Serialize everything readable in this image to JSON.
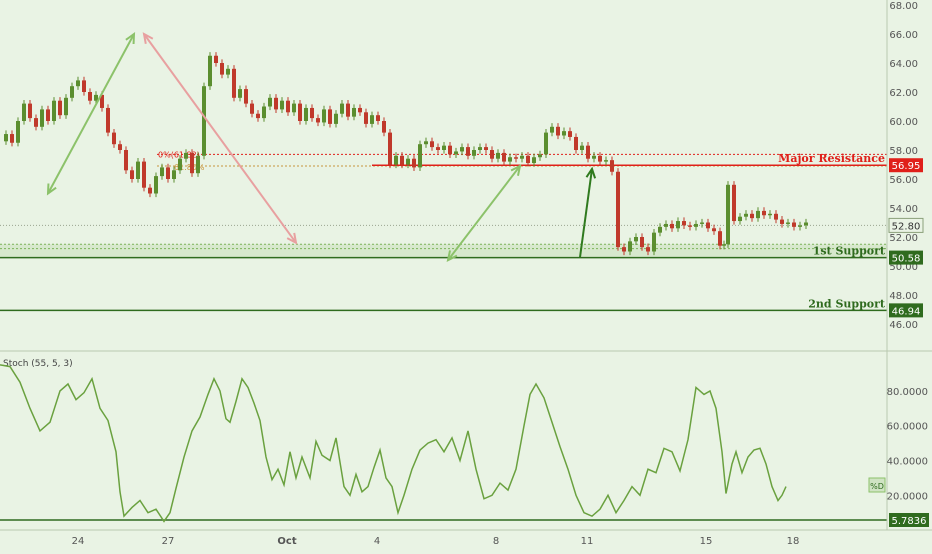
{
  "colors": {
    "background": "#e9f3e4",
    "up_candle": "#5b8e2f",
    "down_candle": "#c0392b",
    "resistance": "#e0201a",
    "support": "#2f6b1e",
    "stoch_line": "#6aa13f",
    "fib_line": "#c8963e",
    "arrow_red": "#e8a0a0",
    "arrow_green": "#8cc26a",
    "up_arrow": "#2f7a1e",
    "axis_text": "#555555"
  },
  "chart_data": [
    {
      "type": "candlestick",
      "ylim": [
        45.6,
        68.2
      ],
      "y_ticks": [
        "46.00",
        "48.00",
        "50.00",
        "52.00",
        "54.00",
        "56.00",
        "58.00",
        "60.00",
        "62.00",
        "64.00",
        "66.00",
        "68.00"
      ],
      "x_ticks": [
        "24",
        "27",
        "Oct",
        "4",
        "8",
        "11",
        "15",
        "18"
      ],
      "price_path": [
        [
          0,
          58.6
        ],
        [
          3,
          59.1
        ],
        [
          6,
          58.5
        ],
        [
          9,
          60.0
        ],
        [
          12,
          61.2
        ],
        [
          15,
          60.2
        ],
        [
          18,
          59.6
        ],
        [
          21,
          60.8
        ],
        [
          24,
          60.0
        ],
        [
          27,
          61.4
        ],
        [
          30,
          60.4
        ],
        [
          33,
          61.6
        ],
        [
          36,
          62.4
        ],
        [
          39,
          62.8
        ],
        [
          42,
          62.0
        ],
        [
          45,
          61.4
        ],
        [
          48,
          61.8
        ],
        [
          51,
          60.9
        ],
        [
          54,
          59.2
        ],
        [
          57,
          58.4
        ],
        [
          60,
          58.0
        ],
        [
          63,
          56.6
        ],
        [
          66,
          56.0
        ],
        [
          69,
          57.2
        ],
        [
          72,
          55.4
        ],
        [
          75,
          55.0
        ],
        [
          78,
          56.2
        ],
        [
          81,
          56.8
        ],
        [
          84,
          56.0
        ],
        [
          87,
          56.6
        ],
        [
          90,
          57.4
        ],
        [
          93,
          57.8
        ],
        [
          96,
          56.4
        ],
        [
          99,
          57.6
        ],
        [
          102,
          62.4
        ],
        [
          105,
          64.5
        ],
        [
          108,
          64.0
        ],
        [
          111,
          63.2
        ],
        [
          114,
          63.6
        ],
        [
          117,
          61.6
        ],
        [
          120,
          62.2
        ],
        [
          123,
          61.2
        ],
        [
          126,
          60.5
        ],
        [
          129,
          60.2
        ],
        [
          132,
          61.0
        ],
        [
          135,
          61.6
        ],
        [
          138,
          60.8
        ],
        [
          141,
          61.4
        ],
        [
          144,
          60.6
        ],
        [
          147,
          61.2
        ],
        [
          150,
          60.0
        ],
        [
          153,
          60.9
        ],
        [
          156,
          60.2
        ],
        [
          159,
          59.9
        ],
        [
          162,
          60.8
        ],
        [
          165,
          59.8
        ],
        [
          168,
          60.5
        ],
        [
          171,
          61.2
        ],
        [
          174,
          60.3
        ],
        [
          177,
          60.9
        ],
        [
          180,
          60.6
        ],
        [
          183,
          59.8
        ],
        [
          186,
          60.4
        ],
        [
          189,
          60.0
        ],
        [
          192,
          59.2
        ],
        [
          195,
          57.0
        ],
        [
          198,
          57.6
        ],
        [
          201,
          57.0
        ],
        [
          204,
          57.4
        ],
        [
          207,
          56.8
        ],
        [
          210,
          58.4
        ],
        [
          213,
          58.6
        ],
        [
          216,
          58.2
        ],
        [
          219,
          58.0
        ],
        [
          222,
          58.3
        ],
        [
          225,
          57.7
        ],
        [
          228,
          57.9
        ],
        [
          231,
          58.2
        ],
        [
          234,
          57.6
        ],
        [
          237,
          58.0
        ],
        [
          240,
          58.2
        ],
        [
          243,
          58.0
        ],
        [
          246,
          57.4
        ],
        [
          249,
          57.8
        ],
        [
          252,
          57.2
        ],
        [
          255,
          57.5
        ],
        [
          258,
          57.4
        ],
        [
          261,
          57.6
        ],
        [
          264,
          57.1
        ],
        [
          267,
          57.5
        ],
        [
          270,
          57.7
        ],
        [
          273,
          59.2
        ],
        [
          276,
          59.6
        ],
        [
          279,
          59.0
        ],
        [
          282,
          59.3
        ],
        [
          285,
          58.9
        ],
        [
          288,
          58.0
        ],
        [
          291,
          58.3
        ],
        [
          294,
          57.4
        ],
        [
          297,
          57.6
        ],
        [
          300,
          57.2
        ],
        [
          303,
          57.3
        ],
        [
          306,
          56.5
        ],
        [
          309,
          51.3
        ],
        [
          312,
          51.0
        ],
        [
          315,
          51.7
        ],
        [
          318,
          52.0
        ],
        [
          321,
          51.3
        ],
        [
          324,
          51.0
        ],
        [
          327,
          52.3
        ],
        [
          330,
          52.7
        ],
        [
          333,
          52.9
        ],
        [
          336,
          52.6
        ],
        [
          339,
          53.1
        ],
        [
          342,
          52.8
        ],
        [
          345,
          52.7
        ],
        [
          348,
          52.9
        ],
        [
          351,
          53.0
        ],
        [
          354,
          52.6
        ],
        [
          357,
          52.4
        ],
        [
          360,
          51.4
        ],
        [
          362,
          51.5
        ],
        [
          364,
          55.6
        ],
        [
          367,
          53.1
        ],
        [
          370,
          53.4
        ],
        [
          373,
          53.6
        ],
        [
          376,
          53.3
        ],
        [
          379,
          53.8
        ],
        [
          382,
          53.5
        ],
        [
          385,
          53.6
        ],
        [
          388,
          53.2
        ],
        [
          391,
          52.9
        ],
        [
          394,
          53.0
        ],
        [
          397,
          52.7
        ],
        [
          400,
          52.8
        ],
        [
          403,
          53.0
        ]
      ],
      "levels": [
        {
          "label": "Major Resistance",
          "value": 56.95
        },
        {
          "label": "1st Support",
          "value": 50.58
        },
        {
          "label": "2nd Support",
          "value": 46.94
        }
      ],
      "current_price": 52.8,
      "fib_labels": [
        "0%(61.82)",
        "61.80%"
      ],
      "annotations": [
        {
          "type": "arrow",
          "color": "arrow_green",
          "from": [
            24,
            55.0
          ],
          "to": [
            67,
            66.0
          ]
        },
        {
          "type": "arrow",
          "color": "arrow_red",
          "from": [
            72,
            66.0
          ],
          "to": [
            148,
            51.6
          ]
        },
        {
          "type": "arrow",
          "color": "arrow_green",
          "from": [
            224,
            50.4
          ],
          "to": [
            260,
            56.9
          ]
        },
        {
          "type": "arrow",
          "color": "up_arrow",
          "from": [
            290,
            50.6
          ],
          "to": [
            296,
            56.7
          ]
        }
      ]
    },
    {
      "type": "line",
      "name": "Stoch (55, 5, 3)",
      "ylim": [
        0,
        100
      ],
      "y_ticks": [
        "20.0000",
        "40.0000",
        "60.0000",
        "80.0000"
      ],
      "series": [
        {
          "name": "%D",
          "points": [
            [
              0,
              95
            ],
            [
              5,
              94
            ],
            [
              10,
              85
            ],
            [
              15,
              70
            ],
            [
              20,
              57
            ],
            [
              25,
              62
            ],
            [
              30,
              80
            ],
            [
              34,
              84
            ],
            [
              38,
              75
            ],
            [
              42,
              79
            ],
            [
              46,
              87
            ],
            [
              50,
              70
            ],
            [
              54,
              63
            ],
            [
              58,
              45
            ],
            [
              60,
              22
            ],
            [
              62,
              8
            ],
            [
              66,
              13
            ],
            [
              70,
              17
            ],
            [
              74,
              10
            ],
            [
              78,
              12
            ],
            [
              82,
              5
            ],
            [
              85,
              10
            ],
            [
              88,
              24
            ],
            [
              92,
              42
            ],
            [
              96,
              57
            ],
            [
              100,
              65
            ],
            [
              104,
              78
            ],
            [
              107,
              87
            ],
            [
              110,
              80
            ],
            [
              113,
              64
            ],
            [
              115,
              62
            ],
            [
              118,
              74
            ],
            [
              121,
              87
            ],
            [
              124,
              82
            ],
            [
              127,
              73
            ],
            [
              130,
              63
            ],
            [
              133,
              42
            ],
            [
              136,
              29
            ],
            [
              139,
              35
            ],
            [
              142,
              26
            ],
            [
              145,
              45
            ],
            [
              148,
              30
            ],
            [
              151,
              42
            ],
            [
              155,
              30
            ],
            [
              158,
              51
            ],
            [
              161,
              43
            ],
            [
              165,
              40
            ],
            [
              168,
              53
            ],
            [
              172,
              25
            ],
            [
              175,
              20
            ],
            [
              178,
              32
            ],
            [
              181,
              22
            ],
            [
              184,
              25
            ],
            [
              187,
              36
            ],
            [
              190,
              46
            ],
            [
              193,
              30
            ],
            [
              196,
              25
            ],
            [
              199,
              10
            ],
            [
              202,
              20
            ],
            [
              206,
              35
            ],
            [
              210,
              46
            ],
            [
              214,
              50
            ],
            [
              218,
              52
            ],
            [
              222,
              45
            ],
            [
              226,
              53
            ],
            [
              230,
              40
            ],
            [
              234,
              57
            ],
            [
              238,
              35
            ],
            [
              242,
              18
            ],
            [
              246,
              20
            ],
            [
              250,
              27
            ],
            [
              254,
              23
            ],
            [
              258,
              35
            ],
            [
              262,
              60
            ],
            [
              265,
              78
            ],
            [
              268,
              84
            ],
            [
              272,
              76
            ],
            [
              276,
              62
            ],
            [
              280,
              48
            ],
            [
              284,
              35
            ],
            [
              288,
              20
            ],
            [
              292,
              10
            ],
            [
              296,
              8
            ],
            [
              300,
              12
            ],
            [
              304,
              20
            ],
            [
              308,
              10
            ],
            [
              312,
              17
            ],
            [
              316,
              25
            ],
            [
              320,
              20
            ],
            [
              324,
              35
            ],
            [
              328,
              33
            ],
            [
              332,
              47
            ],
            [
              336,
              45
            ],
            [
              340,
              34
            ],
            [
              344,
              52
            ],
            [
              348,
              82
            ],
            [
              352,
              78
            ],
            [
              355,
              80
            ],
            [
              358,
              70
            ],
            [
              361,
              45
            ],
            [
              363,
              21
            ],
            [
              366,
              38
            ],
            [
              368,
              45
            ],
            [
              371,
              33
            ],
            [
              374,
              42
            ],
            [
              377,
              46
            ],
            [
              380,
              47
            ],
            [
              383,
              38
            ],
            [
              386,
              25
            ],
            [
              389,
              17
            ],
            [
              391,
              20
            ],
            [
              393,
              25
            ]
          ]
        }
      ],
      "current_value": "5.7836"
    }
  ]
}
